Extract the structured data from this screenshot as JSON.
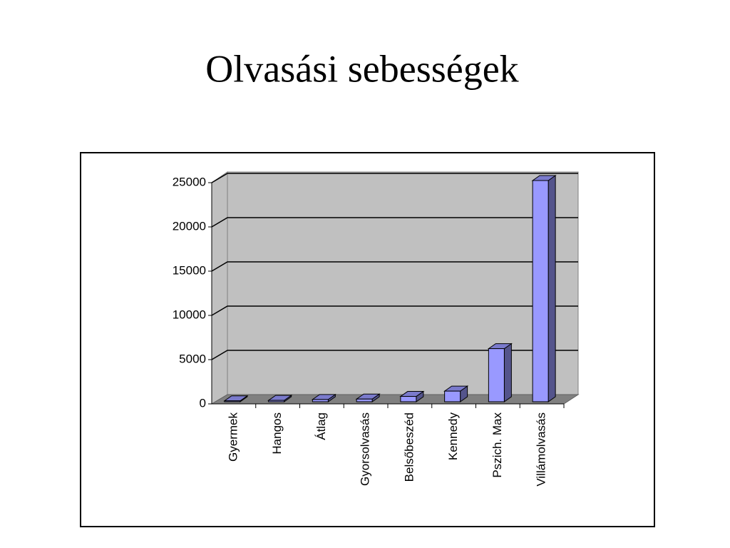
{
  "chart_data": {
    "type": "bar",
    "title": "Olvasási sebességek",
    "categories": [
      "Gyermek",
      "Hangos",
      "Átlag",
      "Gyorsolvasás",
      "Belsőbeszéd",
      "Kennedy",
      "Pszich. Max",
      "Villámolvasás"
    ],
    "values": [
      100,
      150,
      250,
      300,
      600,
      1200,
      6000,
      25000
    ],
    "color": "#9999ff",
    "ylim": [
      0,
      25000
    ],
    "yticks": [
      0,
      5000,
      10000,
      15000,
      20000,
      25000
    ],
    "grid": true
  }
}
